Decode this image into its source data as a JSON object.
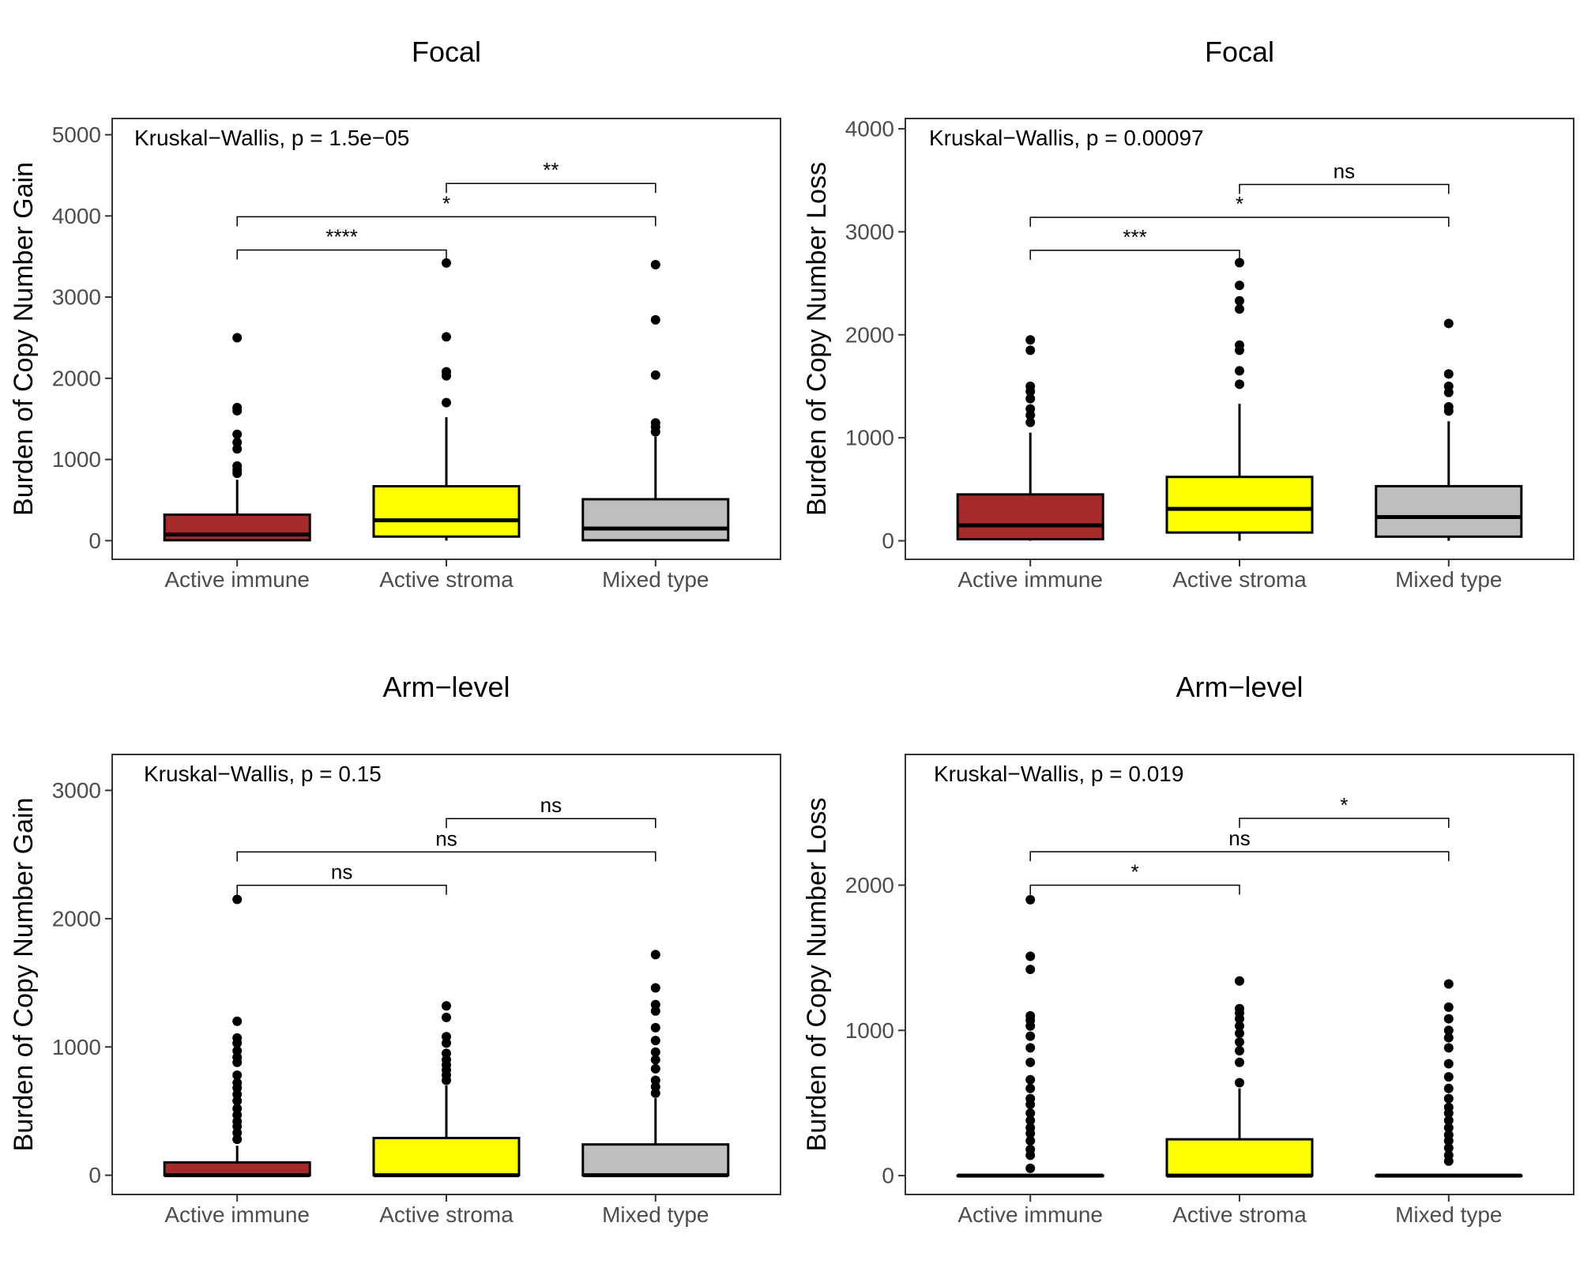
{
  "colors": {
    "Active immune": "#A52A2A",
    "Active stroma": "#FFFF00",
    "Mixed type": "#BEBEBE"
  },
  "chart_data": [
    {
      "type": "box",
      "title": "Focal",
      "ylabel": "Burden of Copy Number Gain",
      "ylim": [
        -230,
        5200
      ],
      "yticks": [
        0,
        1000,
        2000,
        3000,
        4000,
        5000
      ],
      "categories": [
        "Active immune",
        "Active stroma",
        "Mixed type"
      ],
      "annotation": "Kruskal−Wallis, p = 1.5e−05",
      "boxes": [
        {
          "q1": 5,
          "median": 75,
          "q3": 320,
          "lower": 0,
          "upper": 750,
          "outliers": [
            830,
            870,
            920,
            1130,
            1210,
            1310,
            1600,
            1640,
            2500
          ]
        },
        {
          "q1": 50,
          "median": 250,
          "q3": 670,
          "lower": 0,
          "upper": 1520,
          "outliers": [
            1700,
            2030,
            2080,
            2510,
            3420
          ]
        },
        {
          "q1": 5,
          "median": 150,
          "q3": 510,
          "lower": 0,
          "upper": 1280,
          "outliers": [
            1340,
            1400,
            1450,
            2040,
            2720,
            3400
          ]
        }
      ],
      "comparisons": [
        {
          "from": 0,
          "to": 1,
          "y": 3580,
          "label": "****"
        },
        {
          "from": 0,
          "to": 2,
          "y": 3990,
          "label": "*"
        },
        {
          "from": 1,
          "to": 2,
          "y": 4400,
          "label": "**"
        }
      ]
    },
    {
      "type": "box",
      "title": "Focal",
      "ylabel": "Burden of Copy Number Loss",
      "ylim": [
        -180,
        4100
      ],
      "yticks": [
        0,
        1000,
        2000,
        3000,
        4000
      ],
      "categories": [
        "Active immune",
        "Active stroma",
        "Mixed type"
      ],
      "annotation": "Kruskal−Wallis, p = 0.00097",
      "boxes": [
        {
          "q1": 15,
          "median": 150,
          "q3": 450,
          "lower": 0,
          "upper": 1050,
          "outliers": [
            1150,
            1220,
            1280,
            1380,
            1450,
            1500,
            1850,
            1950
          ]
        },
        {
          "q1": 80,
          "median": 310,
          "q3": 620,
          "lower": 0,
          "upper": 1330,
          "outliers": [
            1520,
            1650,
            1850,
            1900,
            2250,
            2330,
            2480,
            2700
          ]
        },
        {
          "q1": 40,
          "median": 230,
          "q3": 530,
          "lower": 0,
          "upper": 1160,
          "outliers": [
            1260,
            1300,
            1440,
            1500,
            1620,
            2110
          ]
        }
      ],
      "comparisons": [
        {
          "from": 0,
          "to": 1,
          "y": 2820,
          "label": "***"
        },
        {
          "from": 0,
          "to": 2,
          "y": 3140,
          "label": "*"
        },
        {
          "from": 1,
          "to": 2,
          "y": 3460,
          "label": "ns"
        }
      ]
    },
    {
      "type": "box",
      "title": "Arm−level",
      "ylabel": "Burden of Copy Number Gain",
      "ylim": [
        -150,
        3280
      ],
      "yticks": [
        0,
        1000,
        2000,
        3000
      ],
      "categories": [
        "Active immune",
        "Active stroma",
        "Mixed type"
      ],
      "annotation": "Kruskal−Wallis, p = 0.15",
      "boxes": [
        {
          "q1": 0,
          "median": 0,
          "q3": 100,
          "lower": 0,
          "upper": 230,
          "outliers": [
            280,
            330,
            380,
            420,
            470,
            520,
            580,
            630,
            680,
            720,
            780,
            880,
            920,
            970,
            1030,
            1070,
            1200,
            2150
          ]
        },
        {
          "q1": 0,
          "median": 0,
          "q3": 290,
          "lower": 0,
          "upper": 700,
          "outliers": [
            740,
            780,
            820,
            860,
            900,
            950,
            1030,
            1080,
            1230,
            1320
          ]
        },
        {
          "q1": 0,
          "median": 0,
          "q3": 240,
          "lower": 0,
          "upper": 600,
          "outliers": [
            640,
            690,
            740,
            830,
            900,
            960,
            1050,
            1150,
            1280,
            1330,
            1460,
            1720
          ]
        }
      ],
      "comparisons": [
        {
          "from": 0,
          "to": 1,
          "y": 2260,
          "label": "ns"
        },
        {
          "from": 0,
          "to": 2,
          "y": 2520,
          "label": "ns"
        },
        {
          "from": 1,
          "to": 2,
          "y": 2780,
          "label": "ns"
        }
      ]
    },
    {
      "type": "box",
      "title": "Arm−level",
      "ylabel": "Burden of Copy Number Loss",
      "ylim": [
        -130,
        2900
      ],
      "yticks": [
        0,
        1000,
        2000
      ],
      "categories": [
        "Active immune",
        "Active stroma",
        "Mixed type"
      ],
      "annotation": "Kruskal−Wallis, p = 0.019",
      "boxes": [
        {
          "q1": 0,
          "median": 0,
          "q3": 0,
          "lower": 0,
          "upper": 0,
          "outliers": [
            50,
            140,
            180,
            240,
            290,
            330,
            380,
            430,
            490,
            530,
            600,
            660,
            780,
            880,
            960,
            1030,
            1070,
            1100,
            1420,
            1510,
            1900
          ]
        },
        {
          "q1": 0,
          "median": 0,
          "q3": 250,
          "lower": 0,
          "upper": 600,
          "outliers": [
            640,
            780,
            860,
            920,
            980,
            1030,
            1080,
            1120,
            1150,
            1340
          ]
        },
        {
          "q1": 0,
          "median": 0,
          "q3": 0,
          "lower": 0,
          "upper": 0,
          "outliers": [
            100,
            140,
            190,
            240,
            280,
            330,
            380,
            430,
            470,
            530,
            600,
            680,
            770,
            880,
            950,
            1000,
            1080,
            1160,
            1320
          ]
        }
      ],
      "comparisons": [
        {
          "from": 0,
          "to": 1,
          "y": 2000,
          "label": "*"
        },
        {
          "from": 0,
          "to": 2,
          "y": 2230,
          "label": "ns"
        },
        {
          "from": 1,
          "to": 2,
          "y": 2460,
          "label": "*"
        }
      ]
    }
  ]
}
